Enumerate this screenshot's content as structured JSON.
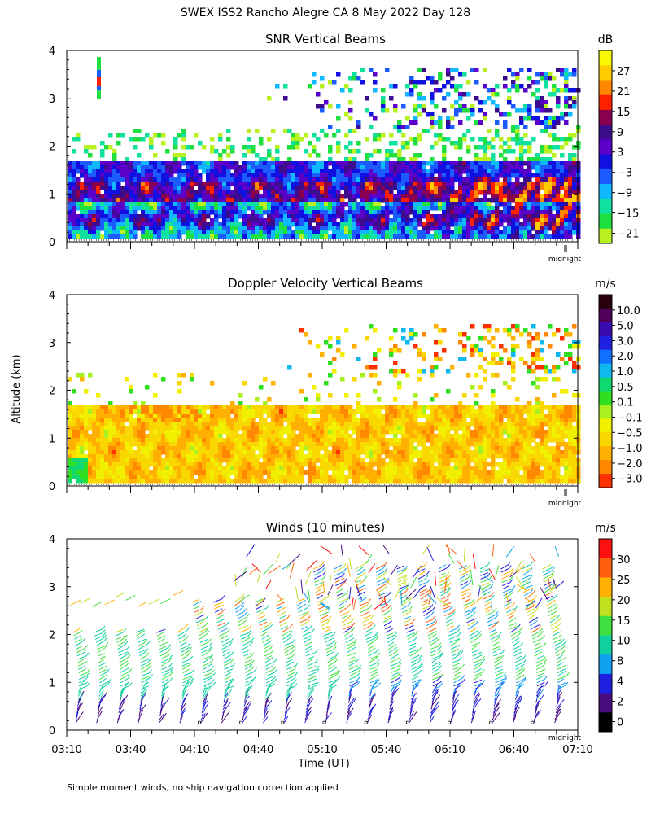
{
  "title": "SWEX ISS2 Rancho Alegre CA   8 May 2022 Day 128",
  "footnote": "Simple moment winds, no ship navigation correction applied",
  "y_axis_label": "Altitude (km)",
  "x_axis_label": "Time (UT)",
  "midnight_label": "midnight",
  "chart_data": [
    {
      "type": "heatmap",
      "title": "SNR Vertical Beams",
      "colorbar_unit": "dB",
      "colorbar_ticks": [
        "27",
        "21",
        "15",
        "9",
        "3",
        "−3",
        "−9",
        "−15",
        "−21"
      ],
      "colorbar_colors": [
        "#f8f800",
        "#ffcc00",
        "#ff8800",
        "#ff2000",
        "#8a0050",
        "#3c0c8c",
        "#5a00c8",
        "#1010e0",
        "#1c5cff",
        "#10b8ff",
        "#10e0a0",
        "#20e040",
        "#b8f020"
      ],
      "ylim": [
        0,
        4
      ],
      "y_ticks": [
        "0",
        "1",
        "2",
        "3",
        "4"
      ],
      "x_range_hours": [
        3.1667,
        7.1667
      ]
    },
    {
      "type": "heatmap",
      "title": "Doppler Velocity Vertical Beams",
      "colorbar_unit": "m/s",
      "colorbar_ticks": [
        "10.0",
        "5.0",
        "3.0",
        "2.0",
        "1.0",
        "0.5",
        "0.1",
        "−0.1",
        "−0.5",
        "−1.0",
        "−2.0",
        "−3.0"
      ],
      "colorbar_colors": [
        "#2a0010",
        "#50005a",
        "#3a0cb0",
        "#2020e0",
        "#1070ff",
        "#10b8f0",
        "#10d870",
        "#30e020",
        "#a8f020",
        "#f0f000",
        "#f8d800",
        "#ffb000",
        "#ff8800",
        "#ff3000"
      ],
      "ylim": [
        0,
        4
      ],
      "y_ticks": [
        "0",
        "1",
        "2",
        "3",
        "4"
      ],
      "x_range_hours": [
        3.1667,
        7.1667
      ]
    },
    {
      "type": "wind_barbs",
      "title": "Winds (10 minutes)",
      "colorbar_unit": "m/s",
      "colorbar_ticks": [
        "30",
        "25",
        "20",
        "15",
        "10",
        "8",
        "4",
        "2",
        "0"
      ],
      "colorbar_colors": [
        "#ff1010",
        "#ff6010",
        "#ffb000",
        "#c0e020",
        "#40e040",
        "#10d0a0",
        "#10a0f0",
        "#2020e0",
        "#4a0a80",
        "#000000"
      ],
      "ylim": [
        0,
        4
      ],
      "y_ticks": [
        "0",
        "1",
        "2",
        "3",
        "4"
      ],
      "x_ticks": [
        "03:10",
        "03:40",
        "04:10",
        "04:40",
        "05:10",
        "05:40",
        "06:10",
        "06:40",
        "07:10"
      ],
      "x_range_hours": [
        3.1667,
        7.1667
      ]
    }
  ]
}
